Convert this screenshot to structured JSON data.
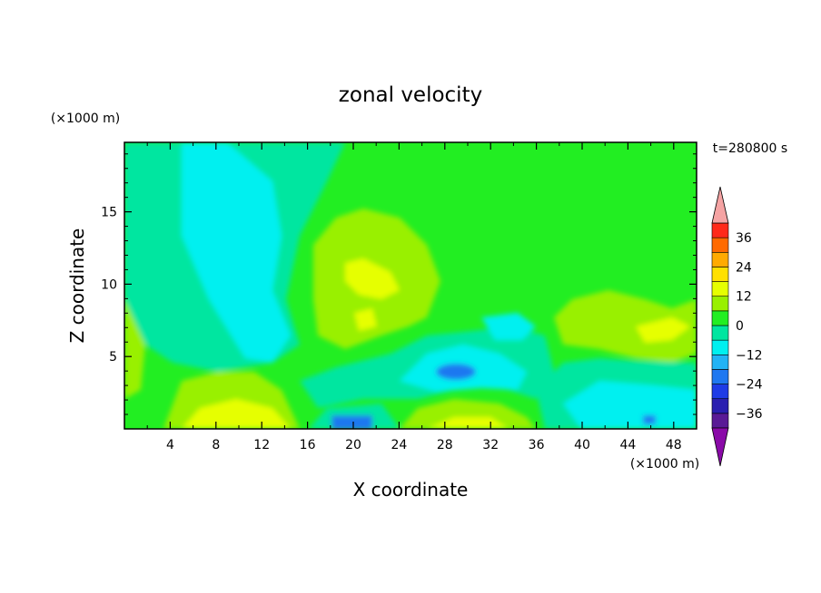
{
  "chart_data": {
    "type": "heatmap",
    "title": "zonal velocity",
    "xlabel": "X coordinate",
    "ylabel": "Z coordinate",
    "x_unit": "(×1000 m)",
    "z_unit": "(×1000 m)",
    "time_label": "t=280800 s",
    "xlim": [
      0,
      50
    ],
    "ylim": [
      0,
      19.8
    ],
    "x_ticks": [
      "4",
      "8",
      "12",
      "16",
      "20",
      "24",
      "28",
      "32",
      "36",
      "40",
      "44",
      "48"
    ],
    "y_ticks": [
      "5",
      "10",
      "15"
    ],
    "colorbar": {
      "labels": [
        "36",
        "24",
        "12",
        "0",
        "-12",
        "-24",
        "-36"
      ],
      "levels": [
        -42,
        -36,
        -30,
        -24,
        -18,
        -12,
        -6,
        0,
        6,
        12,
        18,
        24,
        30,
        36,
        42
      ],
      "colors": [
        "#8a0aa8",
        "#5a1a96",
        "#2a1fb0",
        "#1e3be6",
        "#1f78f0",
        "#22b3f5",
        "#00f0f0",
        "#00e6a0",
        "#22ee22",
        "#99f000",
        "#e6ff00",
        "#ffe000",
        "#ffaa00",
        "#ff6a00",
        "#ff2a1a",
        "#f5a3a3"
      ]
    },
    "field_description_kmunits": [
      {
        "region": "background upper right",
        "value": 3
      },
      {
        "region": "cyan core x 6-14, z 8-18",
        "value": -9
      },
      {
        "region": "lime bulge x 16-28, z 4-15",
        "value": 10
      },
      {
        "region": "yellow blob x 20-23, z 9-11",
        "value": 14
      },
      {
        "region": "blue patch x 27-31, z 3-4",
        "value": -15
      },
      {
        "region": "lime surface x 4-15, z 0-4",
        "value": 10
      },
      {
        "region": "lime surface x 25-36, z 0-2",
        "value": 10
      },
      {
        "region": "lime patch x 38-49, z 4-8",
        "value": 9
      },
      {
        "region": "cyan band x 36-49, z 1-5",
        "value": -8
      }
    ]
  }
}
